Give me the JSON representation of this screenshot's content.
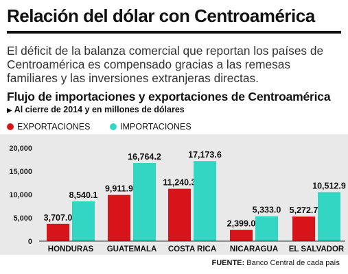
{
  "header": {
    "title": "Relación del dólar con Centroamérica",
    "intro": "El déficit de la balanza comercial que reportan los países de Centroamérica es compensado gracias a las remesas familiares y las inversiones extranjeras directas."
  },
  "chart_header": {
    "title": "Flujo de importaciones y exportaciones de Centroamérica",
    "note": "Al cierre de 2014 y en millones de dólares"
  },
  "colors": {
    "exports": "#d7141a",
    "imports": "#33d6c3",
    "plot_bg": "#e9e9e9"
  },
  "chart_data": {
    "type": "bar",
    "categories": [
      "HONDURAS",
      "GUATEMALA",
      "COSTA RICA",
      "NICARAGUA",
      "EL SALVADOR"
    ],
    "series": [
      {
        "name": "EXPORTACIONES",
        "values": [
          3707.0,
          9911.9,
          11240.3,
          2399.0,
          5272.7
        ],
        "labels": [
          "3,707.0",
          "9,911.9",
          "11,240.3",
          "2,399.0",
          "5,272.7"
        ]
      },
      {
        "name": "IMPORTACIONES",
        "values": [
          8540.1,
          16764.2,
          17173.6,
          5333.0,
          10512.9
        ],
        "labels": [
          "8,540.1",
          "16,764.2",
          "17,173.6",
          "5,333.0",
          "10,512.9"
        ]
      }
    ],
    "yticks": [
      0,
      5000,
      10000,
      15000,
      20000
    ],
    "ytick_labels": [
      "0",
      "5,000",
      "10,000",
      "15,000",
      "20,000"
    ],
    "ylim": [
      0,
      20000
    ],
    "grid": false,
    "legend": "top-left"
  },
  "source": {
    "label": "FUENTE:",
    "text": "Banco Central de cada país"
  }
}
